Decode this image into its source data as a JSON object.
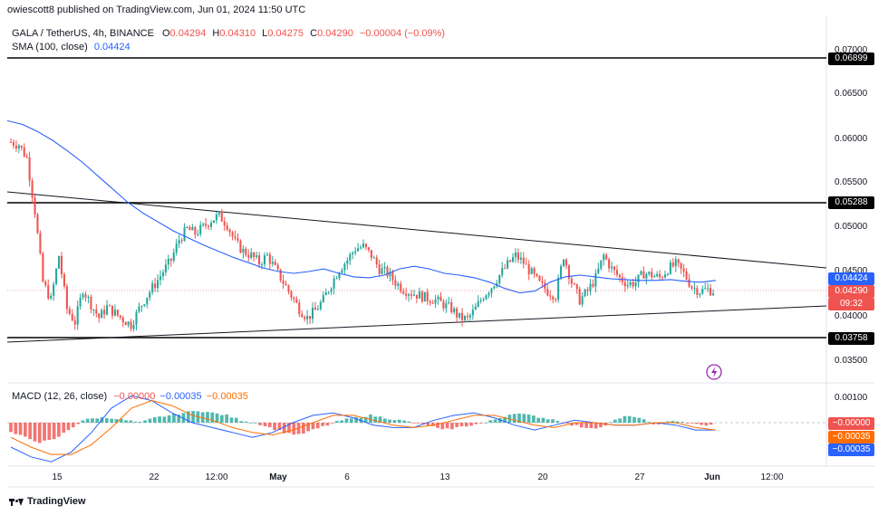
{
  "published_line": "owiescott8 published on TradingView.com, Jun 01, 2024 11:50 UTC",
  "symbol": {
    "title": "GALA / TetherUS, 4h, BINANCE",
    "o_label": "O",
    "o_value": "0.04294",
    "h_label": "H",
    "h_value": "0.04310",
    "l_label": "L",
    "l_value": "0.04275",
    "c_label": "C",
    "c_value": "0.04290",
    "change": "−0.00004 (−0.09%)"
  },
  "sma": {
    "label": "SMA (100, close)",
    "value": "0.04424"
  },
  "macd": {
    "label": "MACD (12, 26, close)",
    "v1": "−0.00000",
    "v2": "−0.00035",
    "v3": "−0.00035"
  },
  "price_axis": [
    "0.07000",
    "0.06500",
    "0.06000",
    "0.05500",
    "0.05000",
    "0.04500",
    "0.04000",
    "0.03500"
  ],
  "macd_axis": [
    "0.00100"
  ],
  "levels": {
    "resistance_top": "0.06899",
    "resistance_mid": "0.05288",
    "support": "0.03758",
    "sma_box": "0.04424",
    "last_price": "0.04290",
    "countdown": "09:32"
  },
  "macd_boxes": [
    "−0.00000",
    "−0.00035",
    "−0.00035"
  ],
  "x_axis": [
    "15",
    "22",
    "12:00",
    "May",
    "6",
    "13",
    "20",
    "27",
    "Jun",
    "12:00"
  ],
  "footer_brand": "TradingView",
  "colors": {
    "up": "#26a69a",
    "down": "#ef5350",
    "sma": "#2962ff",
    "macd_line": "#2962ff",
    "signal_line": "#ff6d00",
    "purple_icon": "#9c27b0"
  },
  "chart_data": {
    "type": "candlestick",
    "title": "GALA / TetherUS, 4h, BINANCE",
    "x_ticks": [
      "15",
      "22",
      "12:00",
      "May",
      "6",
      "13",
      "20",
      "27",
      "Jun",
      "12:00"
    ],
    "y_range": [
      0.032,
      0.071
    ],
    "horizontal_levels": [
      0.06899,
      0.05288,
      0.03758
    ],
    "triangle": {
      "upper": {
        "from": 0.054,
        "to": 0.0452
      },
      "lower": {
        "from": 0.037,
        "to": 0.0412
      }
    },
    "close_path": [
      0.0598,
      0.0595,
      0.058,
      0.052,
      0.044,
      0.042,
      0.047,
      0.041,
      0.0395,
      0.0432,
      0.0415,
      0.04,
      0.0412,
      0.0405,
      0.0398,
      0.0392,
      0.041,
      0.0425,
      0.0438,
      0.0452,
      0.0465,
      0.0488,
      0.05,
      0.0495,
      0.0502,
      0.051,
      0.0515,
      0.0505,
      0.0485,
      0.0475,
      0.047,
      0.0462,
      0.047,
      0.0455,
      0.044,
      0.0425,
      0.041,
      0.04,
      0.0408,
      0.042,
      0.0438,
      0.0455,
      0.0465,
      0.0478,
      0.048,
      0.047,
      0.0455,
      0.045,
      0.044,
      0.0432,
      0.0428,
      0.0425,
      0.0422,
      0.042,
      0.0415,
      0.041,
      0.04,
      0.0398,
      0.041,
      0.0425,
      0.0435,
      0.0448,
      0.046,
      0.047,
      0.0462,
      0.045,
      0.0438,
      0.043,
      0.0425,
      0.047,
      0.044,
      0.042,
      0.043,
      0.0445,
      0.047,
      0.0455,
      0.0445,
      0.0438,
      0.044,
      0.045,
      0.0448,
      0.0445,
      0.0455,
      0.046,
      0.045,
      0.0435,
      0.043,
      0.0432,
      0.0429
    ],
    "sma_path": [
      0.0622,
      0.0618,
      0.061,
      0.06,
      0.0588,
      0.0575,
      0.056,
      0.0545,
      0.053,
      0.0518,
      0.0508,
      0.0498,
      0.049,
      0.0482,
      0.0475,
      0.0468,
      0.0462,
      0.0456,
      0.0452,
      0.045,
      0.0452,
      0.0455,
      0.045,
      0.0446,
      0.0445,
      0.0448,
      0.0455,
      0.0458,
      0.0455,
      0.045,
      0.0448,
      0.0445,
      0.044,
      0.0433,
      0.0428,
      0.043,
      0.044,
      0.0446,
      0.0448,
      0.0446,
      0.0444,
      0.0443,
      0.0442,
      0.0442,
      0.0443,
      0.0441,
      0.044,
      0.0442
    ],
    "macd_hist": [
      -0.0004,
      -0.0006,
      -0.0008,
      -0.0007,
      -0.0003,
      0.0001,
      0.0002,
      0.0002,
      0.0001,
      0.0,
      0.0002,
      0.0003,
      0.0004,
      0.0005,
      0.0004,
      0.0003,
      0.0001,
      0.0,
      -0.0002,
      -0.0004,
      -0.0005,
      -0.0003,
      -0.0001,
      0.0001,
      0.0002,
      0.0003,
      0.0002,
      0.0001,
      0.0,
      -0.0001,
      -0.0003,
      -0.0002,
      -0.0001,
      0.0,
      0.0002,
      0.0004,
      0.0003,
      0.0002,
      0.0001,
      -0.0001,
      -0.0002,
      -0.0002,
      0.0001,
      0.0003,
      0.0001,
      -0.0001,
      0.0001,
      0.0,
      -0.0001,
      -0.0001
    ],
    "macd_line": [
      -0.001,
      -0.0014,
      -0.0016,
      -0.0012,
      -0.0004,
      0.0006,
      0.0011,
      0.0009,
      0.0004,
      0.0,
      -0.0002,
      -0.0004,
      -0.0006,
      -0.0004,
      0.0,
      0.0003,
      0.0004,
      0.0002,
      -0.0001,
      -0.0002,
      -0.0002,
      0.0001,
      0.0003,
      0.0004,
      0.0002,
      -0.0001,
      -0.0003,
      -0.0001,
      0.0001,
      0.0,
      -0.0001,
      -0.0001,
      0.0,
      -0.0001,
      -0.0003,
      -0.0003
    ],
    "signal_line": [
      -0.0006,
      -0.001,
      -0.0013,
      -0.0013,
      -0.0009,
      -0.0002,
      0.0006,
      0.0009,
      0.0007,
      0.0003,
      0.0001,
      -0.0002,
      -0.0004,
      -0.0005,
      -0.0003,
      0.0,
      0.0003,
      0.0003,
      0.0001,
      -0.0001,
      -0.0002,
      -0.0001,
      0.0001,
      0.0003,
      0.0003,
      0.0001,
      -0.0001,
      -0.0002,
      0.0,
      0.0,
      -0.0001,
      -0.0001,
      0.0,
      0.0,
      -0.0002,
      -0.0003
    ]
  }
}
